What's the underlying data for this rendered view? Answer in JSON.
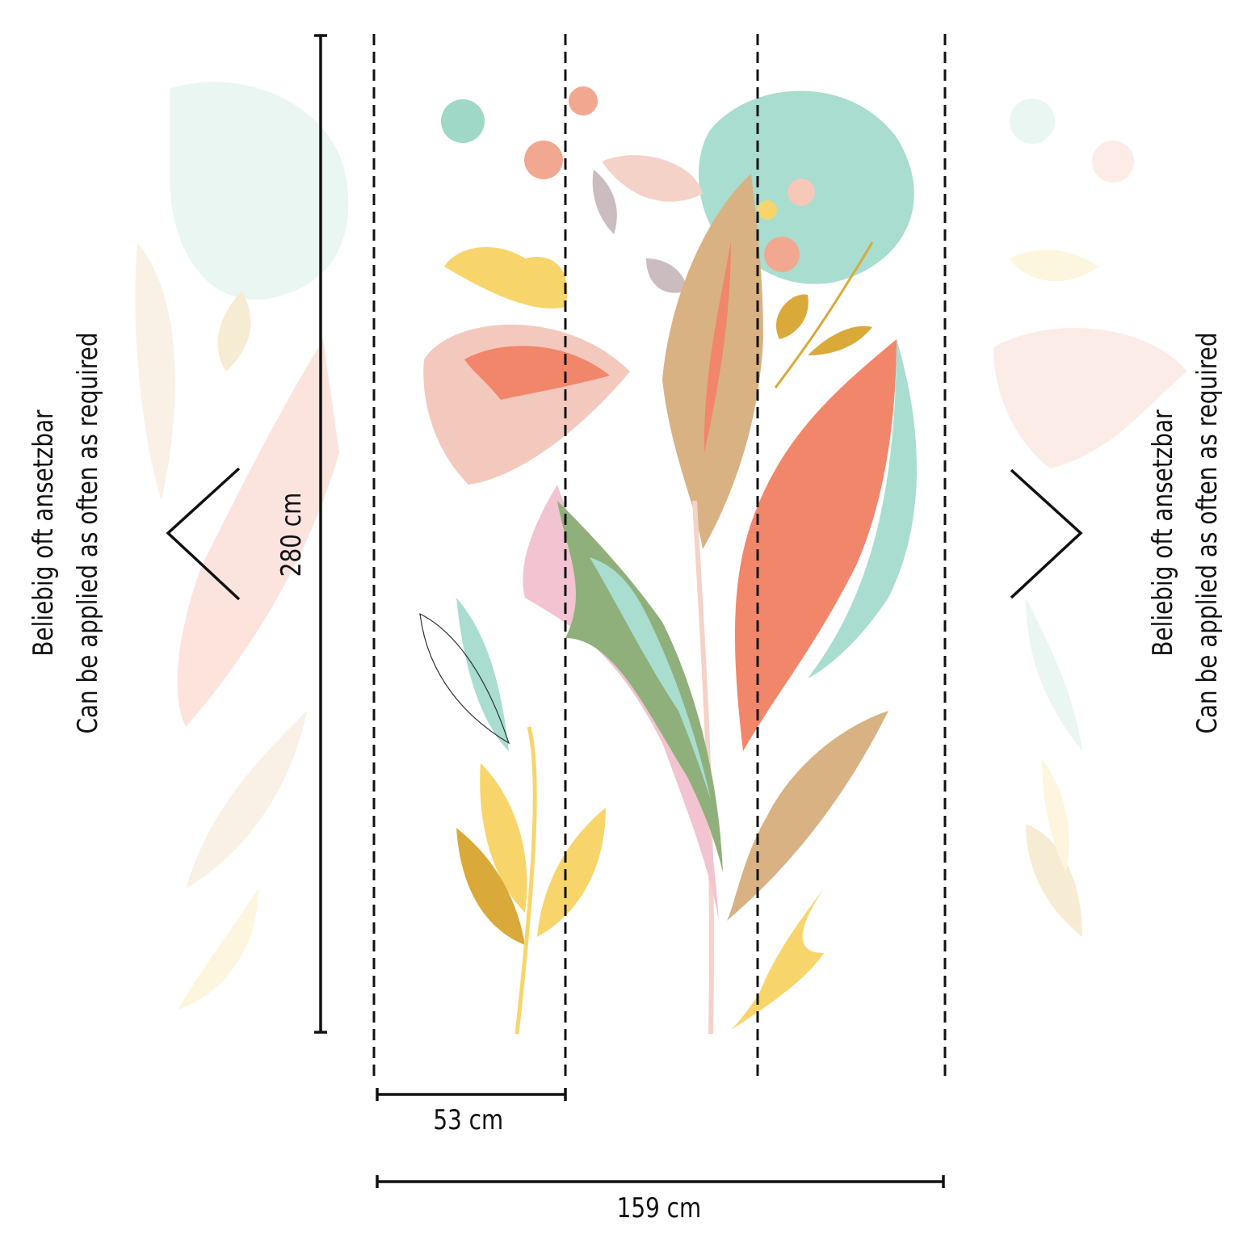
{
  "repeat_note": {
    "lines": [
      "Beliebig oft ansetzbar",
      "Can be applied as often as required"
    ]
  },
  "dimensions": {
    "height": "280 cm",
    "panel_width": "53 cm",
    "total_width": "159 cm"
  }
}
